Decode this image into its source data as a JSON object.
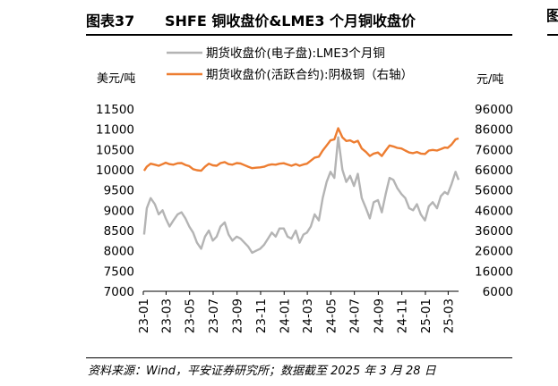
{
  "header": {
    "figure_number": "图表37",
    "title": "SHFE 铜收盘价&LME3 个月铜收盘价"
  },
  "right_fragment": "图",
  "footer": {
    "source": "资料来源：Wind，平安证券研究所；数据截至 2025 年 3 月 28 日"
  },
  "colors": {
    "lme": "#b4b4b4",
    "shfe": "#ed7d31"
  },
  "chart_data": {
    "type": "line",
    "title": "",
    "left_axis_unit": "美元/吨",
    "right_axis_unit": "元/吨",
    "ylim_left": [
      7000,
      11500
    ],
    "ylim_right": [
      6000,
      96000
    ],
    "yticks_left": [
      "11500",
      "11000",
      "10500",
      "10000",
      "9500",
      "9000",
      "8500",
      "8000",
      "7500",
      "7000"
    ],
    "yticks_right": [
      "96000",
      "86000",
      "76000",
      "66000",
      "56000",
      "46000",
      "36000",
      "26000",
      "16000",
      "6000"
    ],
    "x_range": [
      "2023-01",
      "2025-03-28"
    ],
    "xticks": [
      "23-01",
      "23-03",
      "23-05",
      "23-07",
      "23-09",
      "23-11",
      "24-01",
      "24-03",
      "24-05",
      "24-07",
      "24-09",
      "24-11",
      "25-01",
      "25-03"
    ],
    "legend_position": "top",
    "series": [
      {
        "name": "期货收盘价(电子盘):LME3个月铜",
        "axis": "left",
        "color": "#b4b4b4",
        "points": [
          [
            "2023-01-03",
            8400
          ],
          [
            "2023-01-10",
            9050
          ],
          [
            "2023-01-20",
            9300
          ],
          [
            "2023-01-31",
            9150
          ],
          [
            "2023-02-10",
            8900
          ],
          [
            "2023-02-20",
            9000
          ],
          [
            "2023-02-28",
            8800
          ],
          [
            "2023-03-10",
            8600
          ],
          [
            "2023-03-20",
            8750
          ],
          [
            "2023-03-31",
            8900
          ],
          [
            "2023-04-10",
            8950
          ],
          [
            "2023-04-20",
            8800
          ],
          [
            "2023-04-30",
            8600
          ],
          [
            "2023-05-10",
            8450
          ],
          [
            "2023-05-20",
            8200
          ],
          [
            "2023-05-31",
            8050
          ],
          [
            "2023-06-10",
            8350
          ],
          [
            "2023-06-20",
            8500
          ],
          [
            "2023-06-30",
            8250
          ],
          [
            "2023-07-10",
            8350
          ],
          [
            "2023-07-20",
            8600
          ],
          [
            "2023-07-31",
            8700
          ],
          [
            "2023-08-10",
            8400
          ],
          [
            "2023-08-20",
            8250
          ],
          [
            "2023-08-31",
            8350
          ],
          [
            "2023-09-10",
            8300
          ],
          [
            "2023-09-20",
            8200
          ],
          [
            "2023-09-30",
            8100
          ],
          [
            "2023-10-10",
            7950
          ],
          [
            "2023-10-20",
            8000
          ],
          [
            "2023-10-31",
            8050
          ],
          [
            "2023-11-10",
            8150
          ],
          [
            "2023-11-20",
            8300
          ],
          [
            "2023-11-30",
            8450
          ],
          [
            "2023-12-10",
            8350
          ],
          [
            "2023-12-20",
            8550
          ],
          [
            "2023-12-31",
            8550
          ],
          [
            "2024-01-10",
            8350
          ],
          [
            "2024-01-20",
            8300
          ],
          [
            "2024-01-31",
            8500
          ],
          [
            "2024-02-10",
            8200
          ],
          [
            "2024-02-20",
            8400
          ],
          [
            "2024-02-29",
            8450
          ],
          [
            "2024-03-10",
            8600
          ],
          [
            "2024-03-20",
            8900
          ],
          [
            "2024-03-31",
            8750
          ],
          [
            "2024-04-10",
            9300
          ],
          [
            "2024-04-20",
            9700
          ],
          [
            "2024-04-30",
            9950
          ],
          [
            "2024-05-10",
            9800
          ],
          [
            "2024-05-20",
            10800
          ],
          [
            "2024-05-31",
            10000
          ],
          [
            "2024-06-10",
            9700
          ],
          [
            "2024-06-20",
            9850
          ],
          [
            "2024-06-30",
            9600
          ],
          [
            "2024-07-10",
            9900
          ],
          [
            "2024-07-20",
            9300
          ],
          [
            "2024-07-31",
            9050
          ],
          [
            "2024-08-10",
            8800
          ],
          [
            "2024-08-20",
            9200
          ],
          [
            "2024-08-31",
            9250
          ],
          [
            "2024-09-10",
            8950
          ],
          [
            "2024-09-20",
            9400
          ],
          [
            "2024-09-30",
            9800
          ],
          [
            "2024-10-10",
            9750
          ],
          [
            "2024-10-20",
            9550
          ],
          [
            "2024-10-31",
            9400
          ],
          [
            "2024-11-10",
            9300
          ],
          [
            "2024-11-20",
            9050
          ],
          [
            "2024-11-30",
            9000
          ],
          [
            "2024-12-10",
            9150
          ],
          [
            "2024-12-20",
            8900
          ],
          [
            "2024-12-31",
            8750
          ],
          [
            "2025-01-10",
            9100
          ],
          [
            "2025-01-20",
            9200
          ],
          [
            "2025-01-31",
            9050
          ],
          [
            "2025-02-10",
            9350
          ],
          [
            "2025-02-20",
            9450
          ],
          [
            "2025-02-28",
            9400
          ],
          [
            "2025-03-10",
            9650
          ],
          [
            "2025-03-20",
            9950
          ],
          [
            "2025-03-28",
            9750
          ]
        ]
      },
      {
        "name": "期货收盘价(活跃合约):阴极铜（右轴）",
        "axis": "right",
        "color": "#ed7d31",
        "points": [
          [
            "2023-01-03",
            65500
          ],
          [
            "2023-01-10",
            67500
          ],
          [
            "2023-01-20",
            69000
          ],
          [
            "2023-01-31",
            68500
          ],
          [
            "2023-02-10",
            68000
          ],
          [
            "2023-02-20",
            68800
          ],
          [
            "2023-02-28",
            69500
          ],
          [
            "2023-03-10",
            68800
          ],
          [
            "2023-03-20",
            68500
          ],
          [
            "2023-03-31",
            69200
          ],
          [
            "2023-04-10",
            69300
          ],
          [
            "2023-04-20",
            68400
          ],
          [
            "2023-04-30",
            67800
          ],
          [
            "2023-05-10",
            66300
          ],
          [
            "2023-05-20",
            65800
          ],
          [
            "2023-05-31",
            65500
          ],
          [
            "2023-06-10",
            67500
          ],
          [
            "2023-06-20",
            69000
          ],
          [
            "2023-06-30",
            68200
          ],
          [
            "2023-07-10",
            68000
          ],
          [
            "2023-07-20",
            69300
          ],
          [
            "2023-07-31",
            69800
          ],
          [
            "2023-08-10",
            68800
          ],
          [
            "2023-08-20",
            68500
          ],
          [
            "2023-08-31",
            69300
          ],
          [
            "2023-09-10",
            69100
          ],
          [
            "2023-09-20",
            68300
          ],
          [
            "2023-09-30",
            67500
          ],
          [
            "2023-10-10",
            66800
          ],
          [
            "2023-10-20",
            67000
          ],
          [
            "2023-10-31",
            67200
          ],
          [
            "2023-11-10",
            67500
          ],
          [
            "2023-11-20",
            68300
          ],
          [
            "2023-11-30",
            68700
          ],
          [
            "2023-12-10",
            68500
          ],
          [
            "2023-12-20",
            69000
          ],
          [
            "2023-12-31",
            69200
          ],
          [
            "2024-01-10",
            68600
          ],
          [
            "2024-01-20",
            68000
          ],
          [
            "2024-01-31",
            68800
          ],
          [
            "2024-02-10",
            68000
          ],
          [
            "2024-02-20",
            68600
          ],
          [
            "2024-02-29",
            69000
          ],
          [
            "2024-03-10",
            70500
          ],
          [
            "2024-03-20",
            72000
          ],
          [
            "2024-03-31",
            72500
          ],
          [
            "2024-04-10",
            75500
          ],
          [
            "2024-04-20",
            78000
          ],
          [
            "2024-04-30",
            80500
          ],
          [
            "2024-05-10",
            81000
          ],
          [
            "2024-05-20",
            86500
          ],
          [
            "2024-05-31",
            82000
          ],
          [
            "2024-06-10",
            80200
          ],
          [
            "2024-06-20",
            80500
          ],
          [
            "2024-06-30",
            79500
          ],
          [
            "2024-07-10",
            80300
          ],
          [
            "2024-07-20",
            76500
          ],
          [
            "2024-07-31",
            74800
          ],
          [
            "2024-08-10",
            72800
          ],
          [
            "2024-08-20",
            74000
          ],
          [
            "2024-08-31",
            74500
          ],
          [
            "2024-09-10",
            72800
          ],
          [
            "2024-09-20",
            75500
          ],
          [
            "2024-09-30",
            78000
          ],
          [
            "2024-10-10",
            77500
          ],
          [
            "2024-10-20",
            76800
          ],
          [
            "2024-10-31",
            76500
          ],
          [
            "2024-11-10",
            75500
          ],
          [
            "2024-11-20",
            74500
          ],
          [
            "2024-11-30",
            74200
          ],
          [
            "2024-12-10",
            74800
          ],
          [
            "2024-12-20",
            74000
          ],
          [
            "2024-12-31",
            73800
          ],
          [
            "2025-01-10",
            75500
          ],
          [
            "2025-01-20",
            75800
          ],
          [
            "2025-01-31",
            75500
          ],
          [
            "2025-02-10",
            76200
          ],
          [
            "2025-02-20",
            77000
          ],
          [
            "2025-02-28",
            76800
          ],
          [
            "2025-03-10",
            78500
          ],
          [
            "2025-03-20",
            81000
          ],
          [
            "2025-03-28",
            81500
          ]
        ]
      }
    ]
  }
}
